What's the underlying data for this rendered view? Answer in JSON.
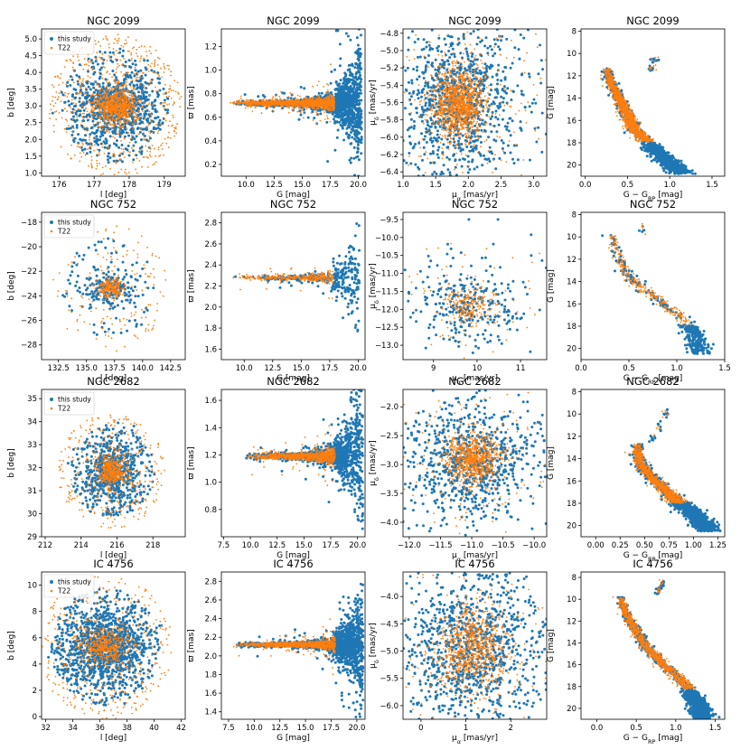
{
  "colors": {
    "this_study": "#1f77b4",
    "t22": "#ff7f0e",
    "frame": "#000000"
  },
  "legend": {
    "this_study": "this study",
    "t22": "T22"
  },
  "chart_data": [
    {
      "type": "scatter",
      "cluster": "NGC 2099",
      "title": "NGC 2099",
      "kind": "lb",
      "xlabel": "l [deg]",
      "ylabel": "b [deg]",
      "xlim": [
        175.5,
        179.6
      ],
      "ylim": [
        0.9,
        5.3
      ],
      "xticks": [
        176,
        177,
        178,
        179
      ],
      "xtick_labels": [
        "176",
        "177",
        "178",
        "179"
      ],
      "yticks": [
        1.0,
        1.5,
        2.0,
        2.5,
        3.0,
        3.5,
        4.0,
        4.5,
        5.0
      ],
      "ytick_labels": [
        "1.0",
        "1.5",
        "2.0",
        "2.5",
        "3.0",
        "3.5",
        "4.0",
        "4.5",
        "5.0"
      ],
      "center": [
        177.6,
        3.0
      ],
      "spread": [
        0.35,
        0.3
      ],
      "halo_radius": 1.9,
      "legend": "upper left",
      "series": [
        {
          "name": "this study",
          "color": "#1f77b4",
          "n": 900
        },
        {
          "name": "T22",
          "color": "#ff7f0e",
          "n": 1400
        }
      ]
    },
    {
      "type": "scatter",
      "cluster": "NGC 2099",
      "title": "NGC 2099",
      "kind": "parallax",
      "xlabel": "G [mag]",
      "ylabel": "ϖ [mas]",
      "xlim": [
        7.8,
        20.6
      ],
      "ylim": [
        0.1,
        1.35
      ],
      "xticks": [
        10.0,
        12.5,
        15.0,
        17.5,
        20.0
      ],
      "xtick_labels": [
        "10.0",
        "12.5",
        "15.0",
        "17.5",
        "20.0"
      ],
      "yticks": [
        0.2,
        0.4,
        0.6,
        0.8,
        1.0,
        1.2
      ],
      "ytick_labels": [
        "0.2",
        "0.4",
        "0.6",
        "0.8",
        "1.0",
        "1.2"
      ],
      "plx": 0.72,
      "gmin": 8.5,
      "gmax": 20.3,
      "fan_limit": 17.9,
      "series": [
        {
          "name": "this study",
          "color": "#1f77b4",
          "n": 1300
        },
        {
          "name": "T22",
          "color": "#ff7f0e",
          "n": 1500
        }
      ]
    },
    {
      "type": "scatter",
      "cluster": "NGC 2099",
      "title": "NGC 2099",
      "kind": "pm",
      "xlabel": "μα [mas/yr]",
      "ylabel": "μδ [mas/yr]",
      "xlim": [
        1.0,
        3.2
      ],
      "ylim": [
        -6.45,
        -4.75
      ],
      "xticks": [
        1.0,
        1.5,
        2.0,
        2.5,
        3.0
      ],
      "xtick_labels": [
        "1.0",
        "1.5",
        "2.0",
        "2.5",
        "3.0"
      ],
      "yticks": [
        -6.4,
        -6.2,
        -6.0,
        -5.8,
        -5.6,
        -5.4,
        -5.2,
        -5.0,
        -4.8
      ],
      "ytick_labels": [
        "−6.4",
        "−6.2",
        "−6.0",
        "−5.8",
        "−5.6",
        "−5.4",
        "−5.2",
        "−5.0",
        "−4.8"
      ],
      "center": [
        1.85,
        -5.62
      ],
      "spread": [
        0.22,
        0.22
      ],
      "series": [
        {
          "name": "this study",
          "color": "#1f77b4",
          "n": 1100
        },
        {
          "name": "T22",
          "color": "#ff7f0e",
          "n": 1500
        }
      ]
    },
    {
      "type": "scatter",
      "cluster": "NGC 2099",
      "title": "NGC 2099",
      "kind": "cmd",
      "xlabel": "G − G_RP [mag]",
      "ylabel": "G [mag]",
      "xlim": [
        -0.05,
        1.65
      ],
      "ylim": [
        21.0,
        7.8
      ],
      "invert_y": true,
      "xticks": [
        0.0,
        0.5,
        1.0,
        1.5
      ],
      "xtick_labels": [
        "0.0",
        "0.5",
        "1.0",
        "1.5"
      ],
      "yticks": [
        8,
        10,
        12,
        14,
        16,
        18,
        20
      ],
      "ytick_labels": [
        "8",
        "10",
        "12",
        "14",
        "16",
        "18",
        "20"
      ],
      "sequence": [
        [
          0.26,
          11.3
        ],
        [
          0.3,
          12.5
        ],
        [
          0.4,
          14
        ],
        [
          0.5,
          15.5
        ],
        [
          0.58,
          16.8
        ],
        [
          0.72,
          17.8
        ],
        [
          0.85,
          18.8
        ],
        [
          1.0,
          19.8
        ],
        [
          1.12,
          20.6
        ]
      ],
      "giants": [
        [
          0.82,
          10.6
        ],
        [
          0.78,
          11.4
        ]
      ],
      "t22_gmax": 17.9,
      "series": [
        {
          "name": "this study",
          "color": "#1f77b4",
          "n": 1200
        },
        {
          "name": "T22",
          "color": "#ff7f0e",
          "n": 1200
        }
      ]
    },
    {
      "type": "scatter",
      "cluster": "NGC 752",
      "title": "NGC 752",
      "kind": "lb",
      "xlabel": "l [deg]",
      "ylabel": "b [deg]",
      "xlim": [
        131,
        143.8
      ],
      "ylim": [
        -29.2,
        -17.2
      ],
      "xticks": [
        132.5,
        135.0,
        137.5,
        140.0,
        142.5
      ],
      "xtick_labels": [
        "132.5",
        "135.0",
        "137.5",
        "140.0",
        "142.5"
      ],
      "yticks": [
        -28,
        -26,
        -24,
        -22,
        -20,
        -18
      ],
      "ytick_labels": [
        "−28",
        "−26",
        "−24",
        "−22",
        "−20",
        "−18"
      ],
      "center": [
        137.1,
        -23.4
      ],
      "spread": [
        0.7,
        0.45
      ],
      "halo_radius": 5.2,
      "legend": "upper left",
      "series": [
        {
          "name": "this study",
          "color": "#1f77b4",
          "n": 250
        },
        {
          "name": "T22",
          "color": "#ff7f0e",
          "n": 380
        }
      ]
    },
    {
      "type": "scatter",
      "cluster": "NGC 752",
      "title": "NGC 752",
      "kind": "parallax",
      "xlabel": "G [mag]",
      "ylabel": "ϖ [mas]",
      "xlim": [
        8.0,
        20.6
      ],
      "ylim": [
        1.5,
        2.9
      ],
      "xticks": [
        10.0,
        12.5,
        15.0,
        17.5,
        20.0
      ],
      "xtick_labels": [
        "10.0",
        "12.5",
        "15.0",
        "17.5",
        "20.0"
      ],
      "yticks": [
        1.6,
        1.8,
        2.0,
        2.2,
        2.4,
        2.6,
        2.8
      ],
      "ytick_labels": [
        "1.6",
        "1.8",
        "2.0",
        "2.2",
        "2.4",
        "2.6",
        "2.8"
      ],
      "plx": 2.28,
      "gmin": 8.8,
      "gmax": 20.1,
      "fan_limit": 17.8,
      "series": [
        {
          "name": "this study",
          "color": "#1f77b4",
          "n": 300
        },
        {
          "name": "T22",
          "color": "#ff7f0e",
          "n": 330
        }
      ]
    },
    {
      "type": "scatter",
      "cluster": "NGC 752",
      "title": "NGC 752",
      "kind": "pm",
      "xlabel": "μα [mas/yr]",
      "ylabel": "μδ [mas/yr]",
      "xlim": [
        8.3,
        11.6
      ],
      "ylim": [
        -13.4,
        -9.3
      ],
      "xticks": [
        9,
        10,
        11
      ],
      "xtick_labels": [
        "9",
        "10",
        "11"
      ],
      "yticks": [
        -13.0,
        -12.5,
        -12.0,
        -11.5,
        -11.0,
        -10.5,
        -10.0,
        -9.5
      ],
      "ytick_labels": [
        "−13.0",
        "−12.5",
        "−12.0",
        "−11.5",
        "−11.0",
        "−10.5",
        "−10.0",
        "−9.5"
      ],
      "center": [
        9.8,
        -11.85
      ],
      "spread": [
        0.32,
        0.3
      ],
      "series": [
        {
          "name": "this study",
          "color": "#1f77b4",
          "n": 300
        },
        {
          "name": "T22",
          "color": "#ff7f0e",
          "n": 300
        }
      ]
    },
    {
      "type": "scatter",
      "cluster": "NGC 752",
      "title": "NGC 752",
      "kind": "cmd",
      "xlabel": "G − G_RP [mag]",
      "ylabel": "G [mag]",
      "xlim": [
        0.0,
        1.5
      ],
      "ylim": [
        21.0,
        7.8
      ],
      "invert_y": true,
      "xticks": [
        0.0,
        0.5,
        1.0,
        1.5
      ],
      "xtick_labels": [
        "0.0",
        "0.5",
        "1.0",
        "1.5"
      ],
      "yticks": [
        8,
        10,
        12,
        14,
        16,
        18,
        20
      ],
      "ytick_labels": [
        "8",
        "10",
        "12",
        "14",
        "16",
        "18",
        "20"
      ],
      "sequence": [
        [
          0.32,
          9.8
        ],
        [
          0.4,
          12
        ],
        [
          0.5,
          13.5
        ],
        [
          0.7,
          15
        ],
        [
          0.9,
          16.2
        ],
        [
          1.05,
          17.2
        ],
        [
          1.15,
          18.2
        ],
        [
          1.2,
          19.2
        ],
        [
          1.25,
          20.3
        ]
      ],
      "giants": [
        [
          0.65,
          9.2
        ]
      ],
      "t22_gmax": 18.0,
      "series": [
        {
          "name": "this study",
          "color": "#1f77b4",
          "n": 320
        },
        {
          "name": "T22",
          "color": "#ff7f0e",
          "n": 280
        }
      ]
    },
    {
      "type": "scatter",
      "cluster": "NGC 2682",
      "title": "NGC 2682",
      "kind": "lb",
      "xlabel": "l [deg]",
      "ylabel": "b [deg]",
      "xlim": [
        211.8,
        219.8
      ],
      "ylim": [
        29.0,
        35.4
      ],
      "xticks": [
        212,
        214,
        216,
        218
      ],
      "xtick_labels": [
        "212",
        "214",
        "216",
        "218"
      ],
      "yticks": [
        29,
        30,
        31,
        32,
        33,
        34,
        35
      ],
      "ytick_labels": [
        "29",
        "30",
        "31",
        "32",
        "33",
        "34",
        "35"
      ],
      "center": [
        215.7,
        31.85
      ],
      "spread": [
        0.45,
        0.38
      ],
      "halo_radius": 3.0,
      "legend": "upper left",
      "series": [
        {
          "name": "this study",
          "color": "#1f77b4",
          "n": 700
        },
        {
          "name": "T22",
          "color": "#ff7f0e",
          "n": 800
        }
      ]
    },
    {
      "type": "scatter",
      "cluster": "NGC 2682",
      "title": "NGC 2682",
      "kind": "parallax",
      "xlabel": "G [mag]",
      "ylabel": "ϖ [mas]",
      "xlim": [
        7.3,
        20.7
      ],
      "ylim": [
        0.6,
        1.68
      ],
      "xticks": [
        7.5,
        10.0,
        12.5,
        15.0,
        17.5,
        20.0
      ],
      "xtick_labels": [
        "7.5",
        "10.0",
        "12.5",
        "15.0",
        "17.5",
        "20.0"
      ],
      "yticks": [
        0.8,
        1.0,
        1.2,
        1.4,
        1.6
      ],
      "ytick_labels": [
        "0.8",
        "1.0",
        "1.2",
        "1.4",
        "1.6"
      ],
      "plx": 1.19,
      "gmin": 9.5,
      "gmax": 20.5,
      "fan_limit": 17.9,
      "series": [
        {
          "name": "this study",
          "color": "#1f77b4",
          "n": 1000
        },
        {
          "name": "T22",
          "color": "#ff7f0e",
          "n": 1000
        }
      ]
    },
    {
      "type": "scatter",
      "cluster": "NGC 2682",
      "title": "NGC 2682",
      "kind": "pm",
      "xlabel": "μα [mas/yr]",
      "ylabel": "μδ [mas/yr]",
      "xlim": [
        -12.1,
        -9.8
      ],
      "ylim": [
        -4.25,
        -1.7
      ],
      "xticks": [
        -12.0,
        -11.5,
        -11.0,
        -10.5,
        -10.0
      ],
      "xtick_labels": [
        "−12.0",
        "−11.5",
        "−11.0",
        "−10.5",
        "−10.0"
      ],
      "yticks": [
        -4.0,
        -3.5,
        -3.0,
        -2.5,
        -2.0
      ],
      "ytick_labels": [
        "−4.0",
        "−3.5",
        "−3.0",
        "−2.5",
        "−2.0"
      ],
      "center": [
        -10.98,
        -2.92
      ],
      "spread": [
        0.25,
        0.25
      ],
      "series": [
        {
          "name": "this study",
          "color": "#1f77b4",
          "n": 900
        },
        {
          "name": "T22",
          "color": "#ff7f0e",
          "n": 1000
        }
      ]
    },
    {
      "type": "scatter",
      "cluster": "NGC 2682",
      "title": "NGC 2682",
      "kind": "cmd",
      "xlabel": "G − G_RP [mag]",
      "ylabel": "G [mag]",
      "xlim": [
        -0.15,
        1.32
      ],
      "ylim": [
        21.0,
        7.8
      ],
      "invert_y": true,
      "xticks": [
        0.0,
        0.25,
        0.5,
        0.75,
        1.0,
        1.25
      ],
      "xtick_labels": [
        "0.00",
        "0.25",
        "0.50",
        "0.75",
        "1.00",
        "1.25"
      ],
      "yticks": [
        8,
        10,
        12,
        14,
        16,
        18,
        20
      ],
      "ytick_labels": [
        "8",
        "10",
        "12",
        "14",
        "16",
        "18",
        "20"
      ],
      "sequence": [
        [
          0.45,
          12.7
        ],
        [
          0.42,
          13.3
        ],
        [
          0.47,
          14.5
        ],
        [
          0.55,
          15.5
        ],
        [
          0.68,
          16.5
        ],
        [
          0.8,
          17.5
        ],
        [
          0.95,
          18.6
        ],
        [
          1.05,
          19.4
        ],
        [
          1.15,
          20.3
        ]
      ],
      "giants": [
        [
          0.58,
          12.2
        ],
        [
          0.65,
          11.2
        ],
        [
          0.72,
          10.0
        ]
      ],
      "t22_gmax": 18.0,
      "series": [
        {
          "name": "this study",
          "color": "#1f77b4",
          "n": 1000
        },
        {
          "name": "T22",
          "color": "#ff7f0e",
          "n": 900
        }
      ]
    },
    {
      "type": "scatter",
      "cluster": "IC 4756",
      "title": "IC 4756",
      "kind": "lb",
      "xlabel": "l [deg]",
      "ylabel": "b [deg]",
      "xlim": [
        31.7,
        42.3
      ],
      "ylim": [
        -0.2,
        11.0
      ],
      "xticks": [
        32,
        34,
        36,
        38,
        40,
        42
      ],
      "xtick_labels": [
        "32",
        "34",
        "36",
        "38",
        "40",
        "42"
      ],
      "yticks": [
        0,
        2,
        4,
        6,
        8,
        10
      ],
      "ytick_labels": [
        "0",
        "2",
        "4",
        "6",
        "8",
        "10"
      ],
      "center": [
        36.4,
        5.3
      ],
      "spread": [
        0.9,
        0.75
      ],
      "halo_radius": 5.0,
      "legend": "upper left",
      "series": [
        {
          "name": "this study",
          "color": "#1f77b4",
          "n": 1300
        },
        {
          "name": "T22",
          "color": "#ff7f0e",
          "n": 900
        }
      ]
    },
    {
      "type": "scatter",
      "cluster": "IC 4756",
      "title": "IC 4756",
      "kind": "parallax",
      "xlabel": "G [mag]",
      "ylabel": "ϖ [mas]",
      "xlim": [
        6.8,
        20.8
      ],
      "ylim": [
        1.32,
        2.9
      ],
      "xticks": [
        7.5,
        10.0,
        12.5,
        15.0,
        17.5,
        20.0
      ],
      "xtick_labels": [
        "7.5",
        "10.0",
        "12.5",
        "15.0",
        "17.5",
        "20.0"
      ],
      "yticks": [
        1.4,
        1.6,
        1.8,
        2.0,
        2.2,
        2.4,
        2.6,
        2.8
      ],
      "ytick_labels": [
        "1.4",
        "1.6",
        "1.8",
        "2.0",
        "2.2",
        "2.4",
        "2.6",
        "2.8"
      ],
      "plx": 2.12,
      "gmin": 8.0,
      "gmax": 20.6,
      "fan_limit": 17.9,
      "series": [
        {
          "name": "this study",
          "color": "#1f77b4",
          "n": 1500
        },
        {
          "name": "T22",
          "color": "#ff7f0e",
          "n": 1100
        }
      ]
    },
    {
      "type": "scatter",
      "cluster": "IC 4756",
      "title": "IC 4756",
      "kind": "pm",
      "xlabel": "μα [mas/yr]",
      "ylabel": "μδ [mas/yr]",
      "xlim": [
        -0.4,
        2.8
      ],
      "ylim": [
        -6.25,
        -3.55
      ],
      "xticks": [
        0,
        1,
        2
      ],
      "xtick_labels": [
        "0",
        "1",
        "2"
      ],
      "yticks": [
        -6.0,
        -5.5,
        -5.0,
        -4.5,
        -4.0
      ],
      "ytick_labels": [
        "−6.0",
        "−5.5",
        "−5.0",
        "−4.5",
        "−4.0"
      ],
      "center": [
        1.15,
        -4.95
      ],
      "spread": [
        0.45,
        0.42
      ],
      "series": [
        {
          "name": "this study",
          "color": "#1f77b4",
          "n": 1300
        },
        {
          "name": "T22",
          "color": "#ff7f0e",
          "n": 1100
        }
      ]
    },
    {
      "type": "scatter",
      "cluster": "IC 4756",
      "title": "IC 4756",
      "kind": "cmd",
      "xlabel": "G − G_RP [mag]",
      "ylabel": "G [mag]",
      "xlim": [
        -0.2,
        1.62
      ],
      "ylim": [
        21.0,
        7.5
      ],
      "invert_y": true,
      "xticks": [
        0.0,
        0.5,
        1.0,
        1.5
      ],
      "xtick_labels": [
        "0.0",
        "0.5",
        "1.0",
        "1.5"
      ],
      "yticks": [
        8,
        10,
        12,
        14,
        16,
        18,
        20
      ],
      "ytick_labels": [
        "8",
        "10",
        "12",
        "14",
        "16",
        "18",
        "20"
      ],
      "sequence": [
        [
          0.3,
          9.8
        ],
        [
          0.38,
          11.5
        ],
        [
          0.5,
          13.0
        ],
        [
          0.65,
          14.5
        ],
        [
          0.85,
          16.0
        ],
        [
          1.05,
          17.2
        ],
        [
          1.2,
          18.5
        ],
        [
          1.3,
          19.8
        ],
        [
          1.35,
          20.8
        ]
      ],
      "giants": [
        [
          0.82,
          8.6
        ],
        [
          0.78,
          9.2
        ]
      ],
      "t22_gmax": 18.2,
      "series": [
        {
          "name": "this study",
          "color": "#1f77b4",
          "n": 1300
        },
        {
          "name": "T22",
          "color": "#ff7f0e",
          "n": 1000
        }
      ]
    }
  ]
}
